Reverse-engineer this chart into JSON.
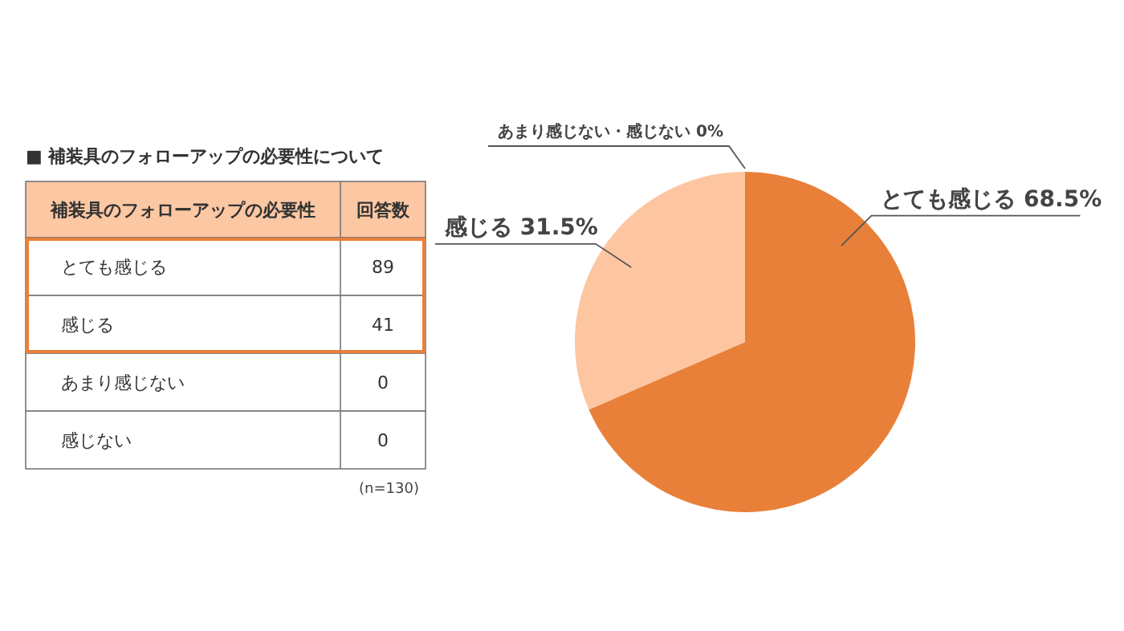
{
  "chart_data": [
    {
      "type": "other",
      "title": "■ 補装具のフォローアップの必要性について",
      "xlabel": "補装具のフォローアップの必要性",
      "ylabel": "回答数",
      "categories": [
        "とても感じる",
        "感じる",
        "あまり感じない",
        "感じない"
      ],
      "values": [
        89,
        41,
        0,
        0
      ],
      "data_labels": true,
      "annotations": [
        "(n=130)"
      ]
    },
    {
      "type": "pie",
      "categories": [
        "とても感じる",
        "感じる",
        "あまり感じない・感じない"
      ],
      "values": [
        68.5,
        31.5,
        0
      ],
      "colors": [
        "#e8803a",
        "#fdc5a0",
        "#f6b38a"
      ],
      "value_labels": [
        "68.5%",
        "31.5%",
        "0%"
      ]
    }
  ]
}
